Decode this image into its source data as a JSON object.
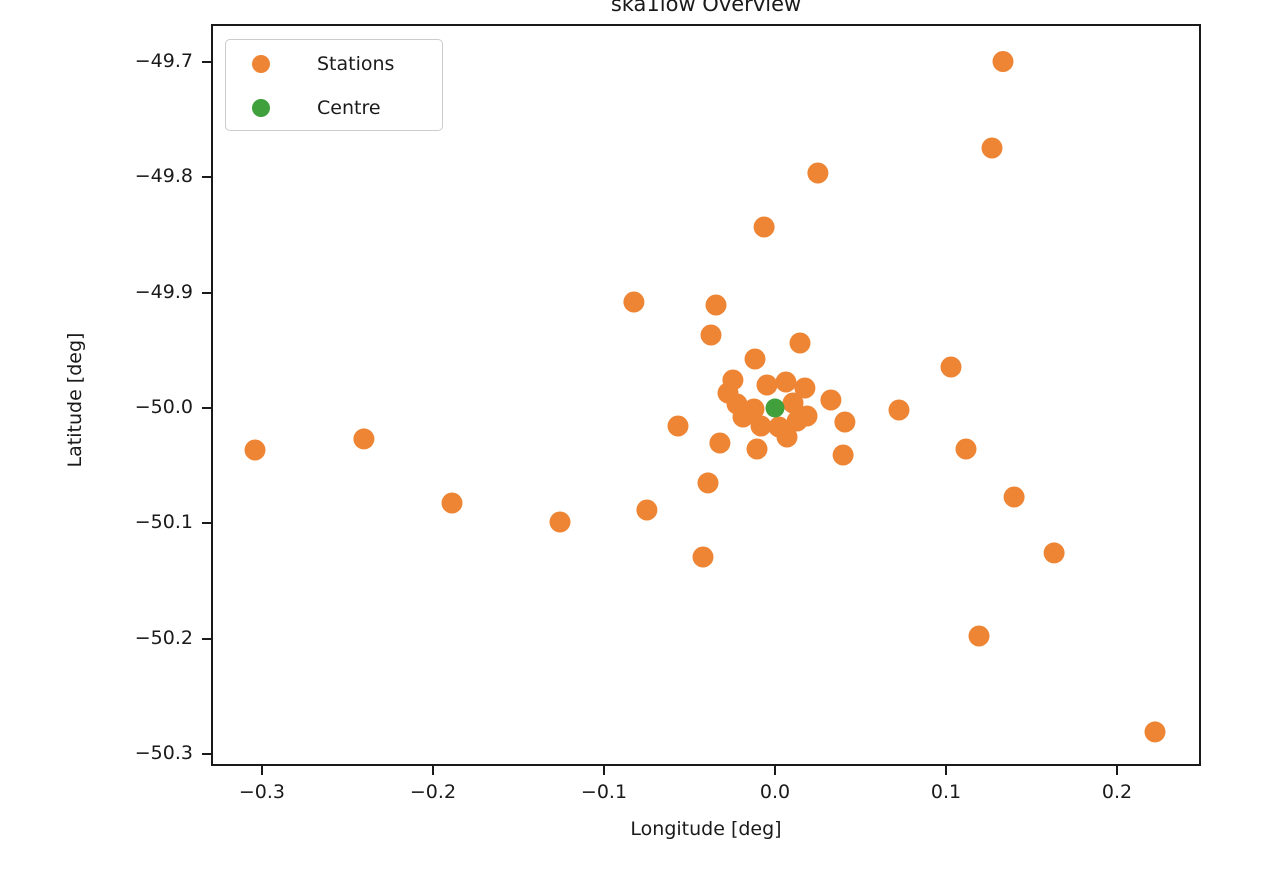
{
  "title": "ska1low Overview",
  "legend": {
    "items": [
      {
        "label": "Stations",
        "color": "#ee8534"
      },
      {
        "label": "Centre",
        "color": "#3fa03c"
      }
    ]
  },
  "chart_data": {
    "type": "scatter",
    "title": "ska1low Overview",
    "xlabel": "Longitude [deg]",
    "ylabel": "Latitude [deg]",
    "xlim": [
      -0.3298,
      0.2491
    ],
    "ylim": [
      -50.31,
      -49.6675
    ],
    "grid": false,
    "legend_position": "upper left",
    "xticks": [
      -0.3,
      -0.2,
      -0.1,
      0.0,
      0.1,
      0.2
    ],
    "xtick_labels": [
      "−0.3",
      "−0.2",
      "−0.1",
      "0.0",
      "0.1",
      "0.2"
    ],
    "yticks": [
      -49.7,
      -49.8,
      -49.9,
      -50.0,
      -50.1,
      -50.2,
      -50.3
    ],
    "ytick_labels": [
      "−49.7",
      "−49.8",
      "−49.9",
      "−50.0",
      "−50.1",
      "−50.2",
      "−50.3"
    ],
    "series": [
      {
        "name": "Stations",
        "color": "#ee8534",
        "marker_radius": 10.5,
        "points": [
          [
            0.1333,
            -49.7
          ],
          [
            0.1269,
            -49.7749
          ],
          [
            0.0251,
            -49.7965
          ],
          [
            -0.0064,
            -49.8433
          ],
          [
            -0.0825,
            -49.9082
          ],
          [
            -0.0345,
            -49.9108
          ],
          [
            -0.0374,
            -49.9368
          ],
          [
            0.0146,
            -49.9437
          ],
          [
            -0.0117,
            -49.9576
          ],
          [
            0.1029,
            -49.9645
          ],
          [
            0.0327,
            -49.9931
          ],
          [
            0.0725,
            -50.0017
          ],
          [
            0.0409,
            -50.0121
          ],
          [
            0.0398,
            -50.0407
          ],
          [
            0.1117,
            -50.0355
          ],
          [
            -0.0567,
            -50.0156
          ],
          [
            -0.0322,
            -50.0303
          ],
          [
            -0.3041,
            -50.0364
          ],
          [
            -0.2404,
            -50.0268
          ],
          [
            -0.1889,
            -50.0823
          ],
          [
            -0.1257,
            -50.0987
          ],
          [
            -0.0749,
            -50.0883
          ],
          [
            -0.0392,
            -50.0649
          ],
          [
            -0.0421,
            -50.129
          ],
          [
            0.1398,
            -50.0771
          ],
          [
            0.1632,
            -50.1255
          ],
          [
            0.1193,
            -50.1974
          ],
          [
            0.2222,
            -50.2805
          ],
          [
            -0.0246,
            -49.9758
          ],
          [
            -0.0275,
            -49.987
          ],
          [
            -0.0047,
            -49.9801
          ],
          [
            0.0064,
            -49.9775
          ],
          [
            0.0175,
            -49.9827
          ],
          [
            -0.0222,
            -49.9965
          ],
          [
            -0.0123,
            -50.0009
          ],
          [
            0.0105,
            -49.9957
          ],
          [
            -0.0187,
            -50.0078
          ],
          [
            -0.0082,
            -50.0156
          ],
          [
            0.0023,
            -50.0165
          ],
          [
            0.0129,
            -50.0113
          ],
          [
            0.0187,
            -50.0069
          ],
          [
            0.007,
            -50.0251
          ],
          [
            -0.0105,
            -50.0355
          ]
        ]
      },
      {
        "name": "Centre",
        "color": "#3fa03c",
        "marker_radius": 9.5,
        "points": [
          [
            0.0,
            -50.0
          ]
        ]
      }
    ]
  }
}
